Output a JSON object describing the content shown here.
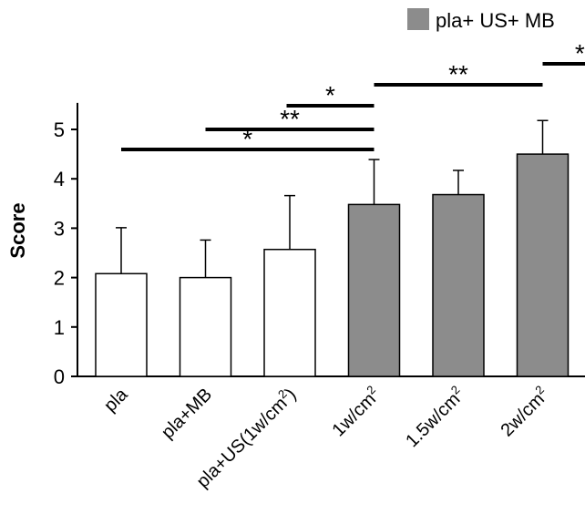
{
  "chart_data": {
    "type": "bar",
    "title": "",
    "xlabel": "",
    "ylabel": "Score",
    "ylim": [
      0,
      5.5
    ],
    "yticks": [
      0,
      1,
      2,
      3,
      4,
      5
    ],
    "categories": [
      {
        "base": "pla",
        "sup": "",
        "tail": ""
      },
      {
        "base": "pla+MB",
        "sup": "",
        "tail": ""
      },
      {
        "base": "pla+US(1w/cm",
        "sup": "2",
        "tail": ")"
      },
      {
        "base": "1w/cm",
        "sup": "2",
        "tail": ""
      },
      {
        "base": "1.5w/cm",
        "sup": "2",
        "tail": ""
      },
      {
        "base": "2w/cm",
        "sup": "2",
        "tail": ""
      }
    ],
    "values": [
      2.08,
      2.0,
      2.57,
      3.48,
      3.68,
      4.5
    ],
    "errors": [
      0.93,
      0.76,
      1.09,
      0.91,
      0.49,
      0.68
    ],
    "bar_fill": [
      "#ffffff",
      "#ffffff",
      "#ffffff",
      "#8c8c8c",
      "#8c8c8c",
      "#8c8c8c"
    ],
    "legend": {
      "label": "pla+ US+ MB",
      "color": "#8c8c8c",
      "position": "top-right"
    },
    "significance": [
      {
        "from": 5,
        "to": 6,
        "label": "**"
      },
      {
        "from": 3,
        "to": 5,
        "label": "**"
      },
      {
        "from": 3,
        "to": 3,
        "label": "*"
      },
      {
        "from": 1,
        "to": 3,
        "label": "**"
      },
      {
        "from": 0,
        "to": 3,
        "label": "*"
      }
    ]
  }
}
